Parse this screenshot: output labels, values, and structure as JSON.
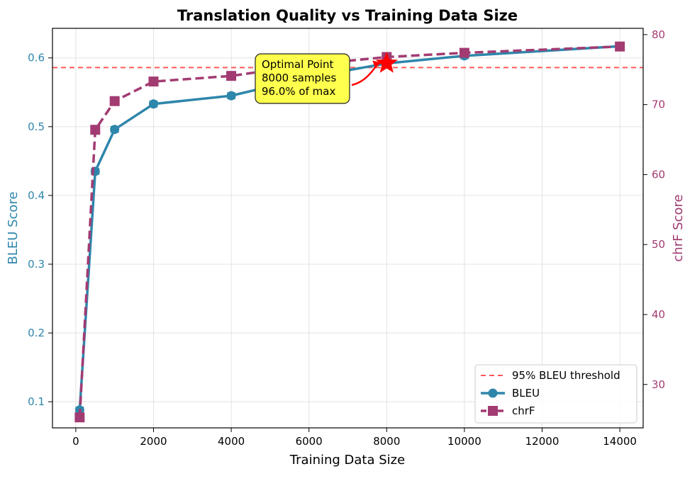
{
  "chart_data": {
    "type": "line",
    "title": "Translation Quality vs Training Data Size",
    "xlabel": "Training Data Size",
    "ylabel_left": "BLEU Score",
    "ylabel_right": "chrF Score",
    "xlim": [
      -600,
      14600
    ],
    "ylim_left": [
      0.062,
      0.643
    ],
    "ylim_right": [
      23.8,
      80.9
    ],
    "x_ticks": [
      0,
      2000,
      4000,
      6000,
      8000,
      10000,
      12000,
      14000
    ],
    "y_left_ticks": [
      0.1,
      0.2,
      0.3,
      0.4,
      0.5,
      0.6
    ],
    "y_right_ticks": [
      30,
      40,
      50,
      60,
      70,
      80
    ],
    "grid": true,
    "legend_position": "lower-right",
    "series": [
      {
        "name": "BLEU",
        "axis": "left",
        "color": "#2e86ab",
        "marker": "circle",
        "line_style": "solid",
        "x": [
          100,
          500,
          1000,
          2000,
          4000,
          6000,
          8000,
          10000,
          14000
        ],
        "values": [
          0.088,
          0.435,
          0.496,
          0.533,
          0.545,
          0.572,
          0.592,
          0.603,
          0.617
        ]
      },
      {
        "name": "chrF",
        "axis": "right",
        "color": "#a23b72",
        "marker": "square",
        "line_style": "dashed",
        "x": [
          100,
          500,
          1000,
          2000,
          4000,
          6000,
          8000,
          10000,
          14000
        ],
        "values": [
          25.3,
          66.4,
          70.5,
          73.3,
          74.1,
          75.7,
          76.8,
          77.4,
          78.3
        ]
      }
    ],
    "threshold": {
      "name": "95% BLEU threshold",
      "axis": "left",
      "value": 0.586,
      "color": "#ff5a5a"
    },
    "annotation": {
      "lines": [
        "Optimal Point",
        "8000 samples",
        "96.0% of max"
      ],
      "x": 8000,
      "value": 0.592,
      "marker_color": "#ff0000",
      "box_color": "#ffff4d"
    }
  }
}
